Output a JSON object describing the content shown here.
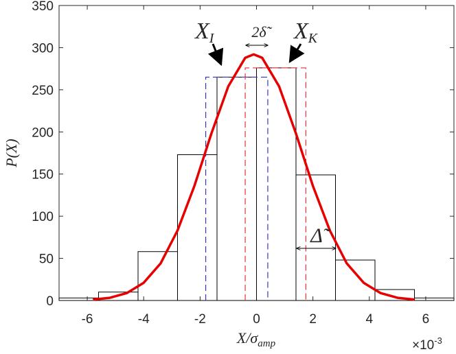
{
  "chart_data": {
    "type": "histogram",
    "bins": [
      -7,
      -5.6,
      -4.2,
      -2.8,
      -1.4,
      0,
      1.4,
      2.8,
      4.2,
      5.6,
      7
    ],
    "counts": [
      3,
      10,
      58,
      173,
      265,
      276,
      149,
      48,
      13,
      3
    ],
    "color": "#000000",
    "curve": {
      "x": [
        -5.8,
        -5.2,
        -4.6,
        -4.0,
        -3.4,
        -2.8,
        -2.2,
        -1.6,
        -1.0,
        -0.4,
        -0.1,
        0.2,
        0.8,
        1.4,
        2.0,
        2.6,
        3.2,
        3.8,
        4.4,
        5.0,
        5.6
      ],
      "y": [
        1.1,
        3.2,
        8.8,
        21,
        44,
        83,
        136,
        198,
        254,
        288,
        292,
        288,
        254,
        198,
        136,
        83,
        44,
        21,
        8.8,
        3.2,
        1.1
      ],
      "color": "#e60000"
    },
    "boxes": [
      {
        "x": [
          -1.8,
          0.4
        ],
        "top": 265,
        "color": "#3333cc"
      },
      {
        "x": [
          -0.4,
          1.75
        ],
        "top": 276,
        "color": "#e63232"
      }
    ],
    "xlim": [
      -7,
      7
    ],
    "ylim": [
      0,
      350
    ],
    "xticks": [
      -6,
      -4,
      -2,
      0,
      2,
      4,
      6
    ],
    "yticks": [
      0,
      50,
      100,
      150,
      200,
      250,
      300,
      350
    ],
    "xlabel": {
      "text": "X/σ",
      "sub": "amp"
    },
    "ylabel": "P(X)",
    "x_exponent": {
      "base": "×10",
      "exp": "-3"
    },
    "annotations": [
      {
        "text": "X",
        "sub": "I"
      },
      {
        "text": "X",
        "sub": "K"
      },
      {
        "text": "2δ̃"
      },
      {
        "text": "Δ̃"
      }
    ]
  }
}
